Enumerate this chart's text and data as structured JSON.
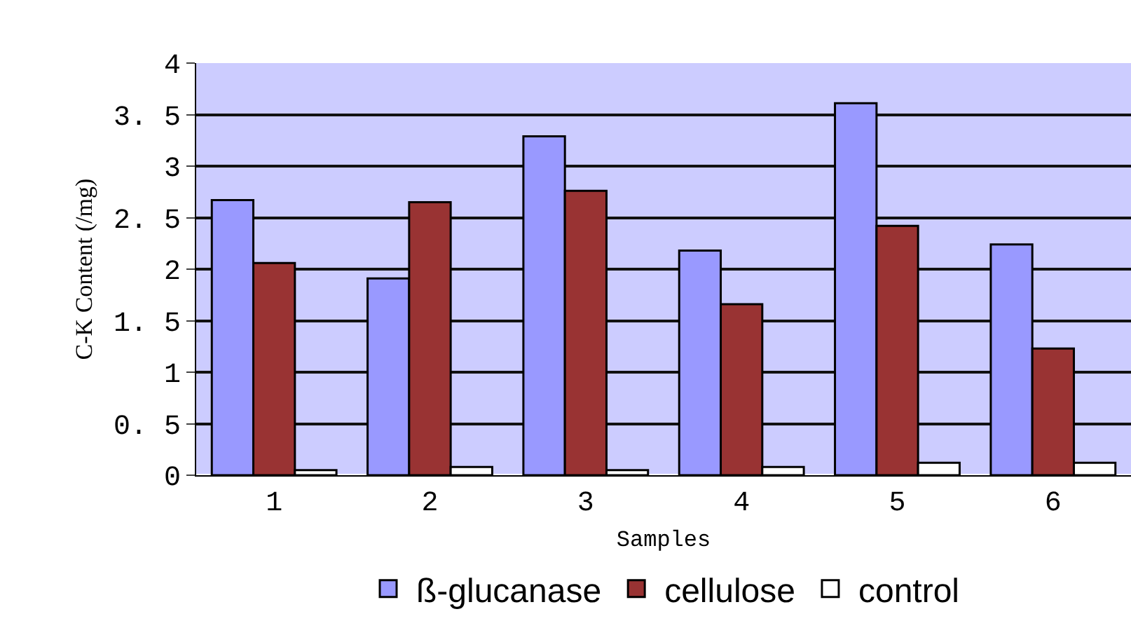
{
  "chart_data": {
    "type": "bar",
    "xlabel": "Samples",
    "ylabel": "C-K Content (/mg)",
    "categories": [
      "1",
      "2",
      "3",
      "4",
      "5",
      "6"
    ],
    "series": [
      {
        "name": "ß-glucanase",
        "color": "#9999ff",
        "values": [
          2.67,
          1.91,
          3.29,
          2.18,
          3.61,
          2.24
        ]
      },
      {
        "name": "cellulose",
        "color": "#993333",
        "values": [
          2.06,
          2.65,
          2.76,
          1.66,
          2.42,
          1.23
        ]
      },
      {
        "name": "control",
        "color": "#ffffff",
        "values": [
          0.05,
          0.08,
          0.05,
          0.08,
          0.12,
          0.12
        ]
      }
    ],
    "ylim": [
      0,
      4
    ],
    "yticks": [
      0,
      {
        "value": 0.5,
        "label": "0. 5"
      },
      1,
      {
        "value": 1.5,
        "label": "1. 5"
      },
      2,
      {
        "value": 2.5,
        "label": "2. 5"
      },
      3,
      {
        "value": 3.5,
        "label": "3. 5"
      },
      4
    ],
    "grid": "y",
    "legend": "bottom"
  }
}
